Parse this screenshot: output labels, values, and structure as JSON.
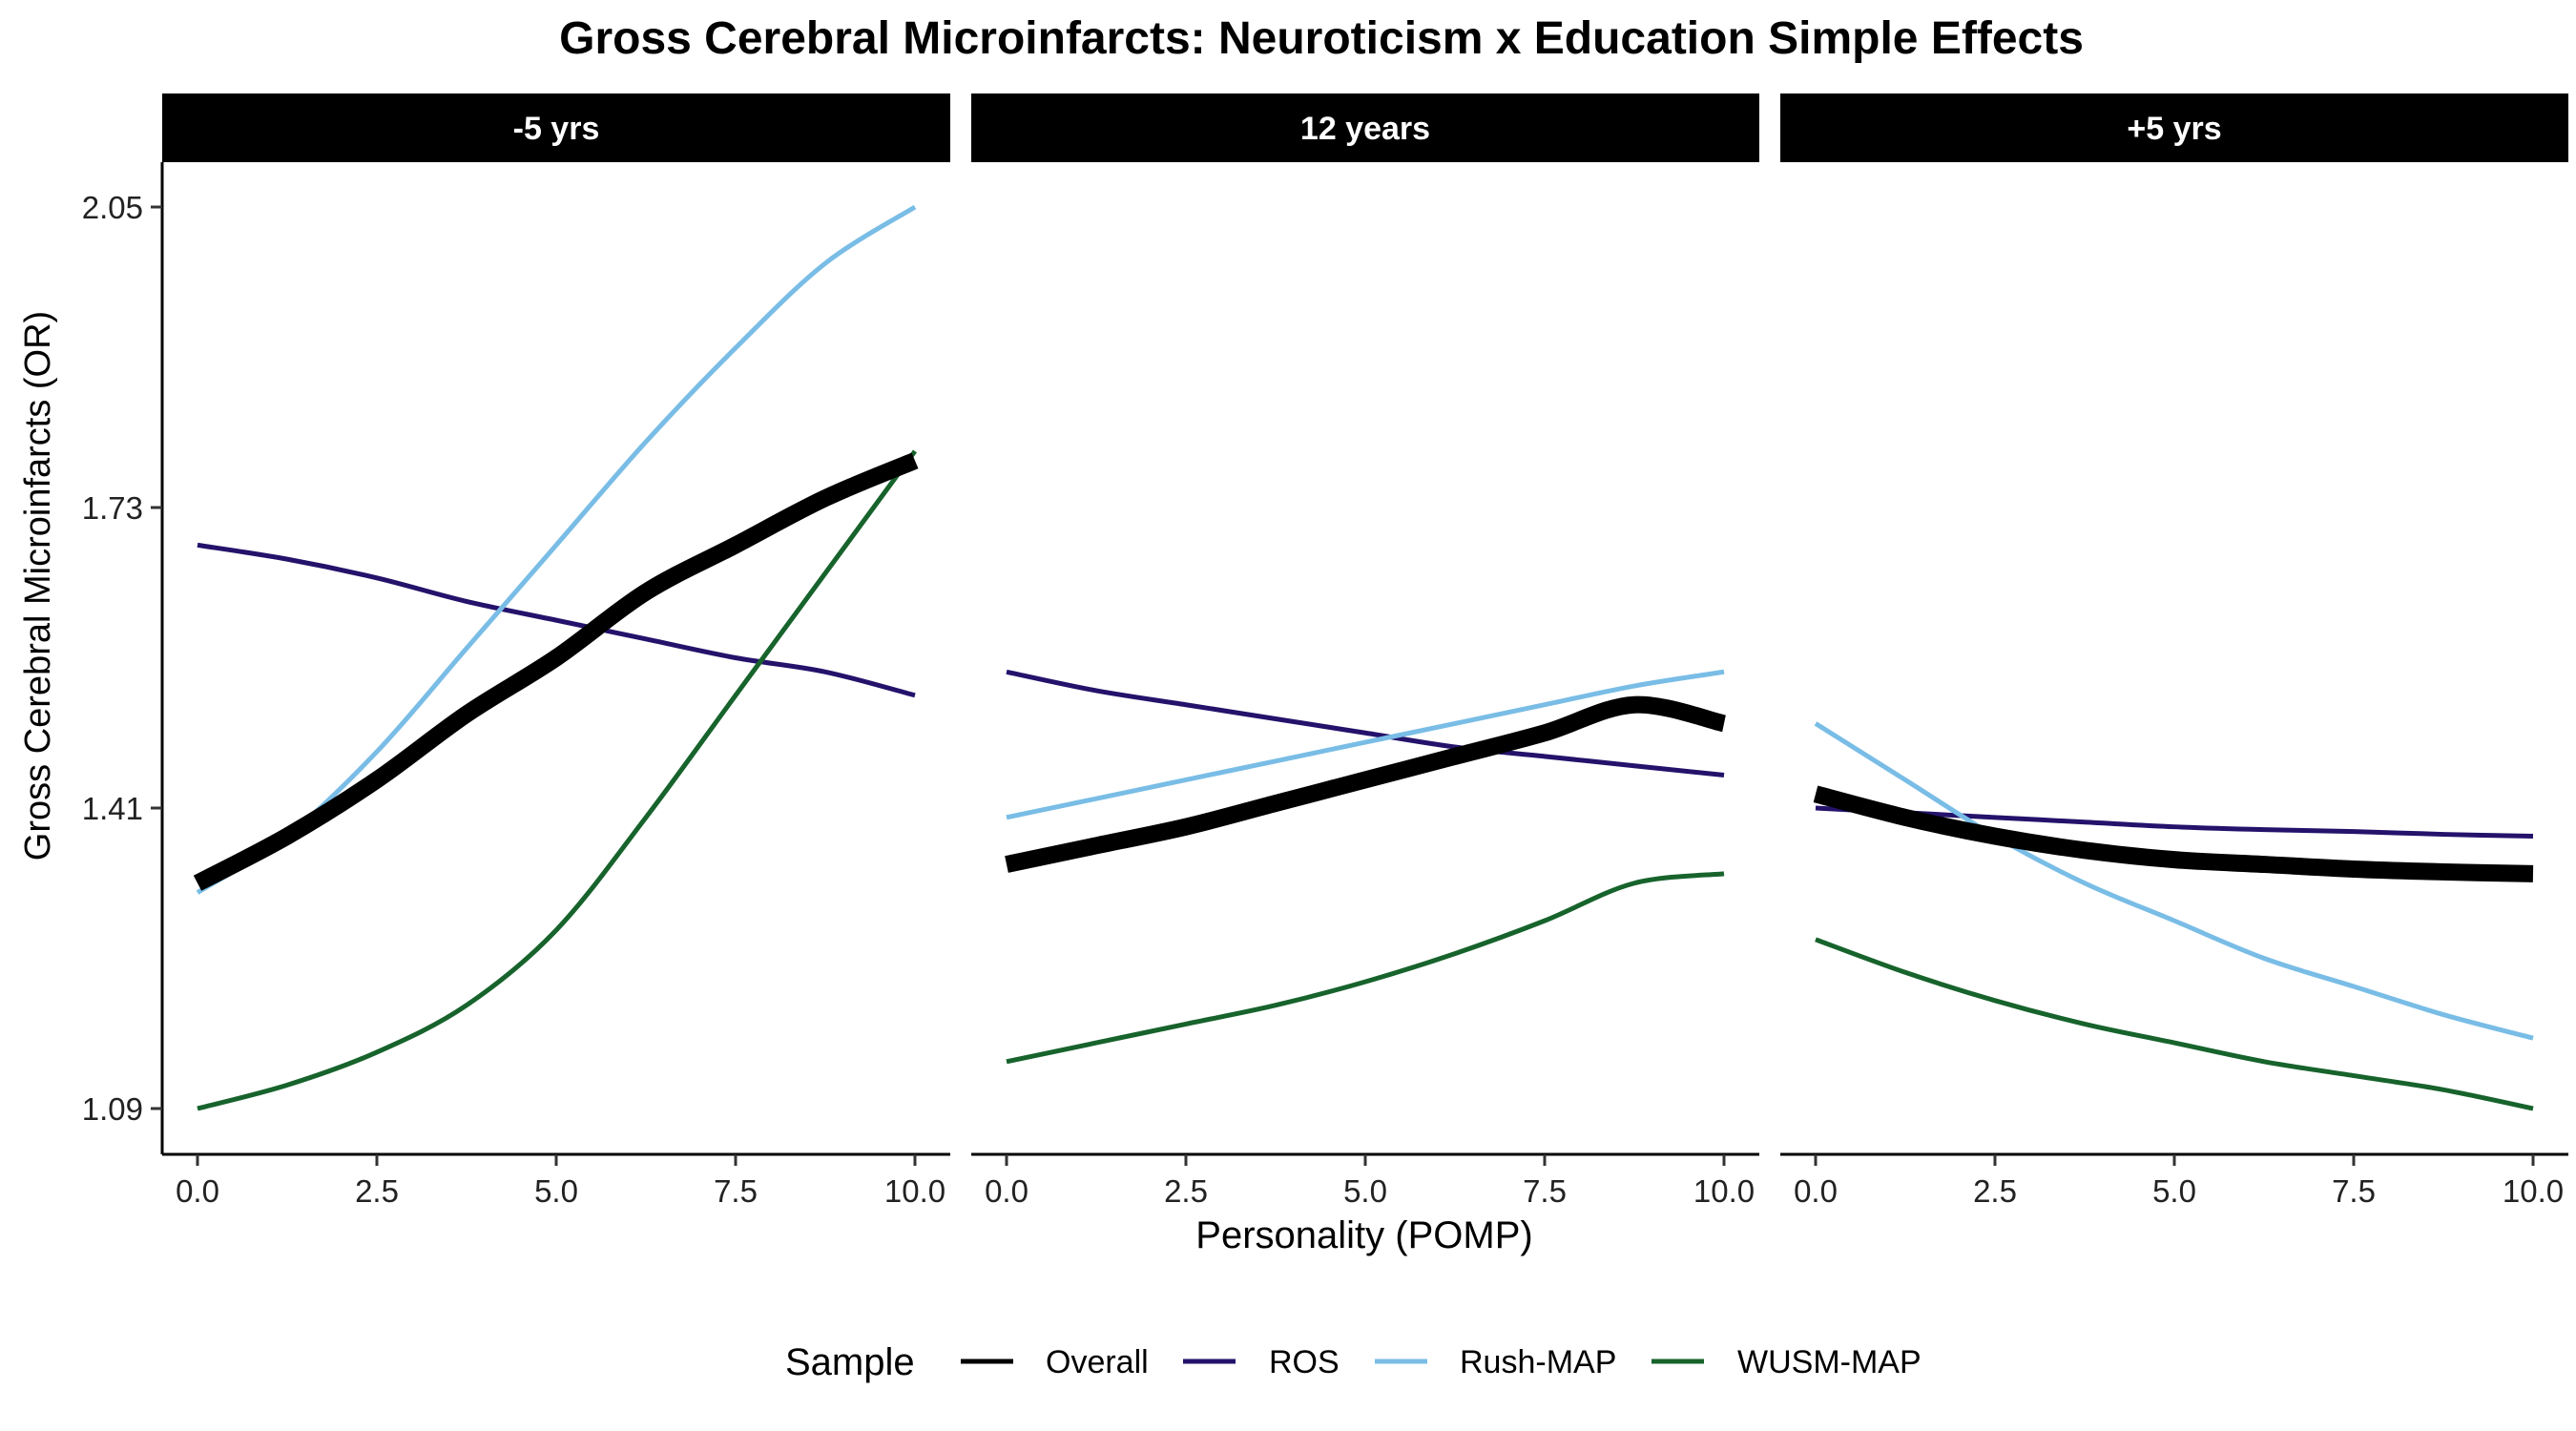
{
  "chart_data": {
    "type": "line",
    "title": "Gross Cerebral Microinfarcts: Neuroticism x Education Simple Effects",
    "xlabel": "Personality (POMP)",
    "ylabel": "Gross Cerebral Microinfarcts (OR)",
    "xlim": [
      0,
      10
    ],
    "ylim": [
      1.09,
      2.05
    ],
    "x_ticks": [
      0,
      2.5,
      5,
      7.5,
      10
    ],
    "x_tick_labels": [
      "0.0",
      "2.5",
      "5.0",
      "7.5",
      "10.0"
    ],
    "y_ticks": [
      1.09,
      1.41,
      1.73,
      2.05
    ],
    "y_tick_labels": [
      "1.09",
      "1.41",
      "1.73",
      "2.05"
    ],
    "grid": false,
    "legend": {
      "title": "Sample",
      "position": "bottom",
      "entries": [
        "Overall",
        "ROS",
        "Rush-MAP",
        "WUSM-MAP"
      ]
    },
    "series_styles": [
      {
        "name": "Overall",
        "color": "#000000",
        "width": "thick"
      },
      {
        "name": "ROS",
        "color": "#24126b",
        "width": "thin"
      },
      {
        "name": "Rush-MAP",
        "color": "#79bde6",
        "width": "thin"
      },
      {
        "name": "WUSM-MAP",
        "color": "#17632c",
        "width": "thin"
      }
    ],
    "x": [
      0,
      1.25,
      2.5,
      3.75,
      5,
      6.25,
      7.5,
      8.75,
      10
    ],
    "panels": [
      {
        "label": "-5 yrs",
        "series": [
          {
            "name": "Overall",
            "values": [
              1.33,
              1.38,
              1.44,
              1.51,
              1.57,
              1.64,
              1.69,
              1.74,
              1.78
            ]
          },
          {
            "name": "ROS",
            "values": [
              1.69,
              1.675,
              1.655,
              1.63,
              1.61,
              1.59,
              1.57,
              1.555,
              1.53
            ]
          },
          {
            "name": "Rush-MAP",
            "values": [
              1.32,
              1.38,
              1.47,
              1.58,
              1.69,
              1.8,
              1.9,
              1.99,
              2.05
            ]
          },
          {
            "name": "WUSM-MAP",
            "values": [
              1.09,
              1.115,
              1.15,
              1.2,
              1.28,
              1.4,
              1.53,
              1.66,
              1.79
            ]
          }
        ]
      },
      {
        "label": "12 years",
        "series": [
          {
            "name": "Overall",
            "values": [
              1.35,
              1.37,
              1.39,
              1.415,
              1.44,
              1.465,
              1.49,
              1.52,
              1.5
            ]
          },
          {
            "name": "ROS",
            "values": [
              1.555,
              1.535,
              1.52,
              1.505,
              1.49,
              1.475,
              1.465,
              1.455,
              1.445
            ]
          },
          {
            "name": "Rush-MAP",
            "values": [
              1.4,
              1.42,
              1.44,
              1.46,
              1.48,
              1.5,
              1.52,
              1.54,
              1.555
            ]
          },
          {
            "name": "WUSM-MAP",
            "values": [
              1.14,
              1.16,
              1.18,
              1.2,
              1.225,
              1.255,
              1.29,
              1.33,
              1.34
            ]
          }
        ]
      },
      {
        "label": "+5 yrs",
        "series": [
          {
            "name": "Overall",
            "values": [
              1.425,
              1.4,
              1.38,
              1.365,
              1.355,
              1.35,
              1.345,
              1.342,
              1.34
            ]
          },
          {
            "name": "ROS",
            "values": [
              1.41,
              1.405,
              1.4,
              1.395,
              1.39,
              1.387,
              1.385,
              1.382,
              1.38
            ]
          },
          {
            "name": "Rush-MAP",
            "values": [
              1.5,
              1.44,
              1.38,
              1.33,
              1.29,
              1.25,
              1.22,
              1.19,
              1.165
            ]
          },
          {
            "name": "WUSM-MAP",
            "values": [
              1.27,
              1.235,
              1.205,
              1.18,
              1.16,
              1.14,
              1.125,
              1.11,
              1.09
            ]
          }
        ]
      }
    ]
  }
}
